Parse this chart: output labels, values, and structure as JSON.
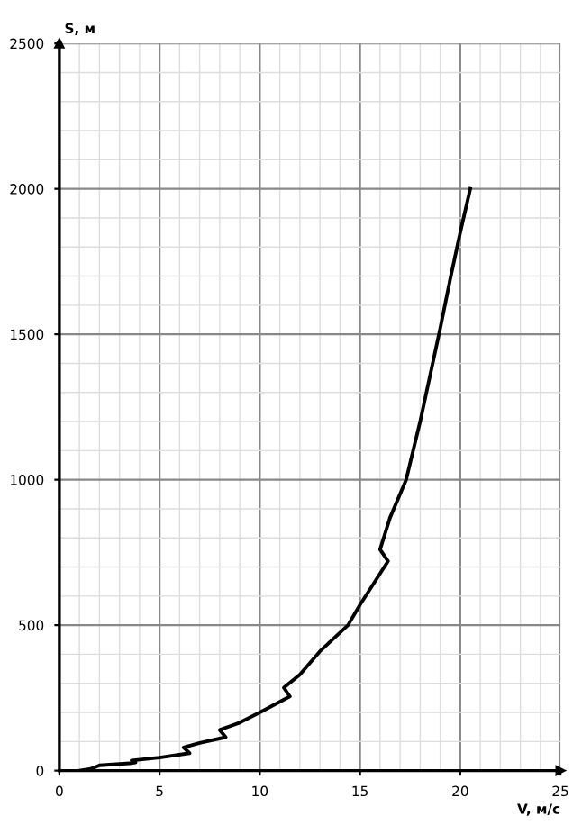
{
  "chart_data": {
    "type": "line",
    "xlabel": "V, м/с",
    "ylabel": "S, м",
    "x": [
      1.0,
      1.5,
      1.8,
      2.0,
      3.5,
      3.8,
      3.6,
      5.0,
      6.5,
      6.2,
      7.0,
      8.3,
      8.0,
      9.0,
      10.0,
      11.5,
      11.2,
      12.0,
      13.0,
      14.4,
      15.0,
      16.4,
      16.0,
      16.5,
      17.3,
      18.0,
      18.5,
      19.0,
      19.5,
      20.0,
      20.5
    ],
    "series": [
      {
        "color": "#000000",
        "values": [
          0,
          5,
          12,
          18,
          25,
          28,
          35,
          45,
          60,
          80,
          95,
          115,
          140,
          165,
          200,
          255,
          285,
          330,
          410,
          500,
          570,
          720,
          760,
          870,
          1000,
          1200,
          1360,
          1520,
          1690,
          1850,
          2000
        ]
      }
    ],
    "xlim": [
      0,
      25
    ],
    "ylim": [
      0,
      2500
    ],
    "xticks": [
      0,
      5,
      10,
      15,
      20,
      25
    ],
    "yticks": [
      0,
      500,
      1000,
      1500,
      2000,
      2500
    ],
    "grid": true,
    "marker": "none",
    "line_style": "solid"
  }
}
